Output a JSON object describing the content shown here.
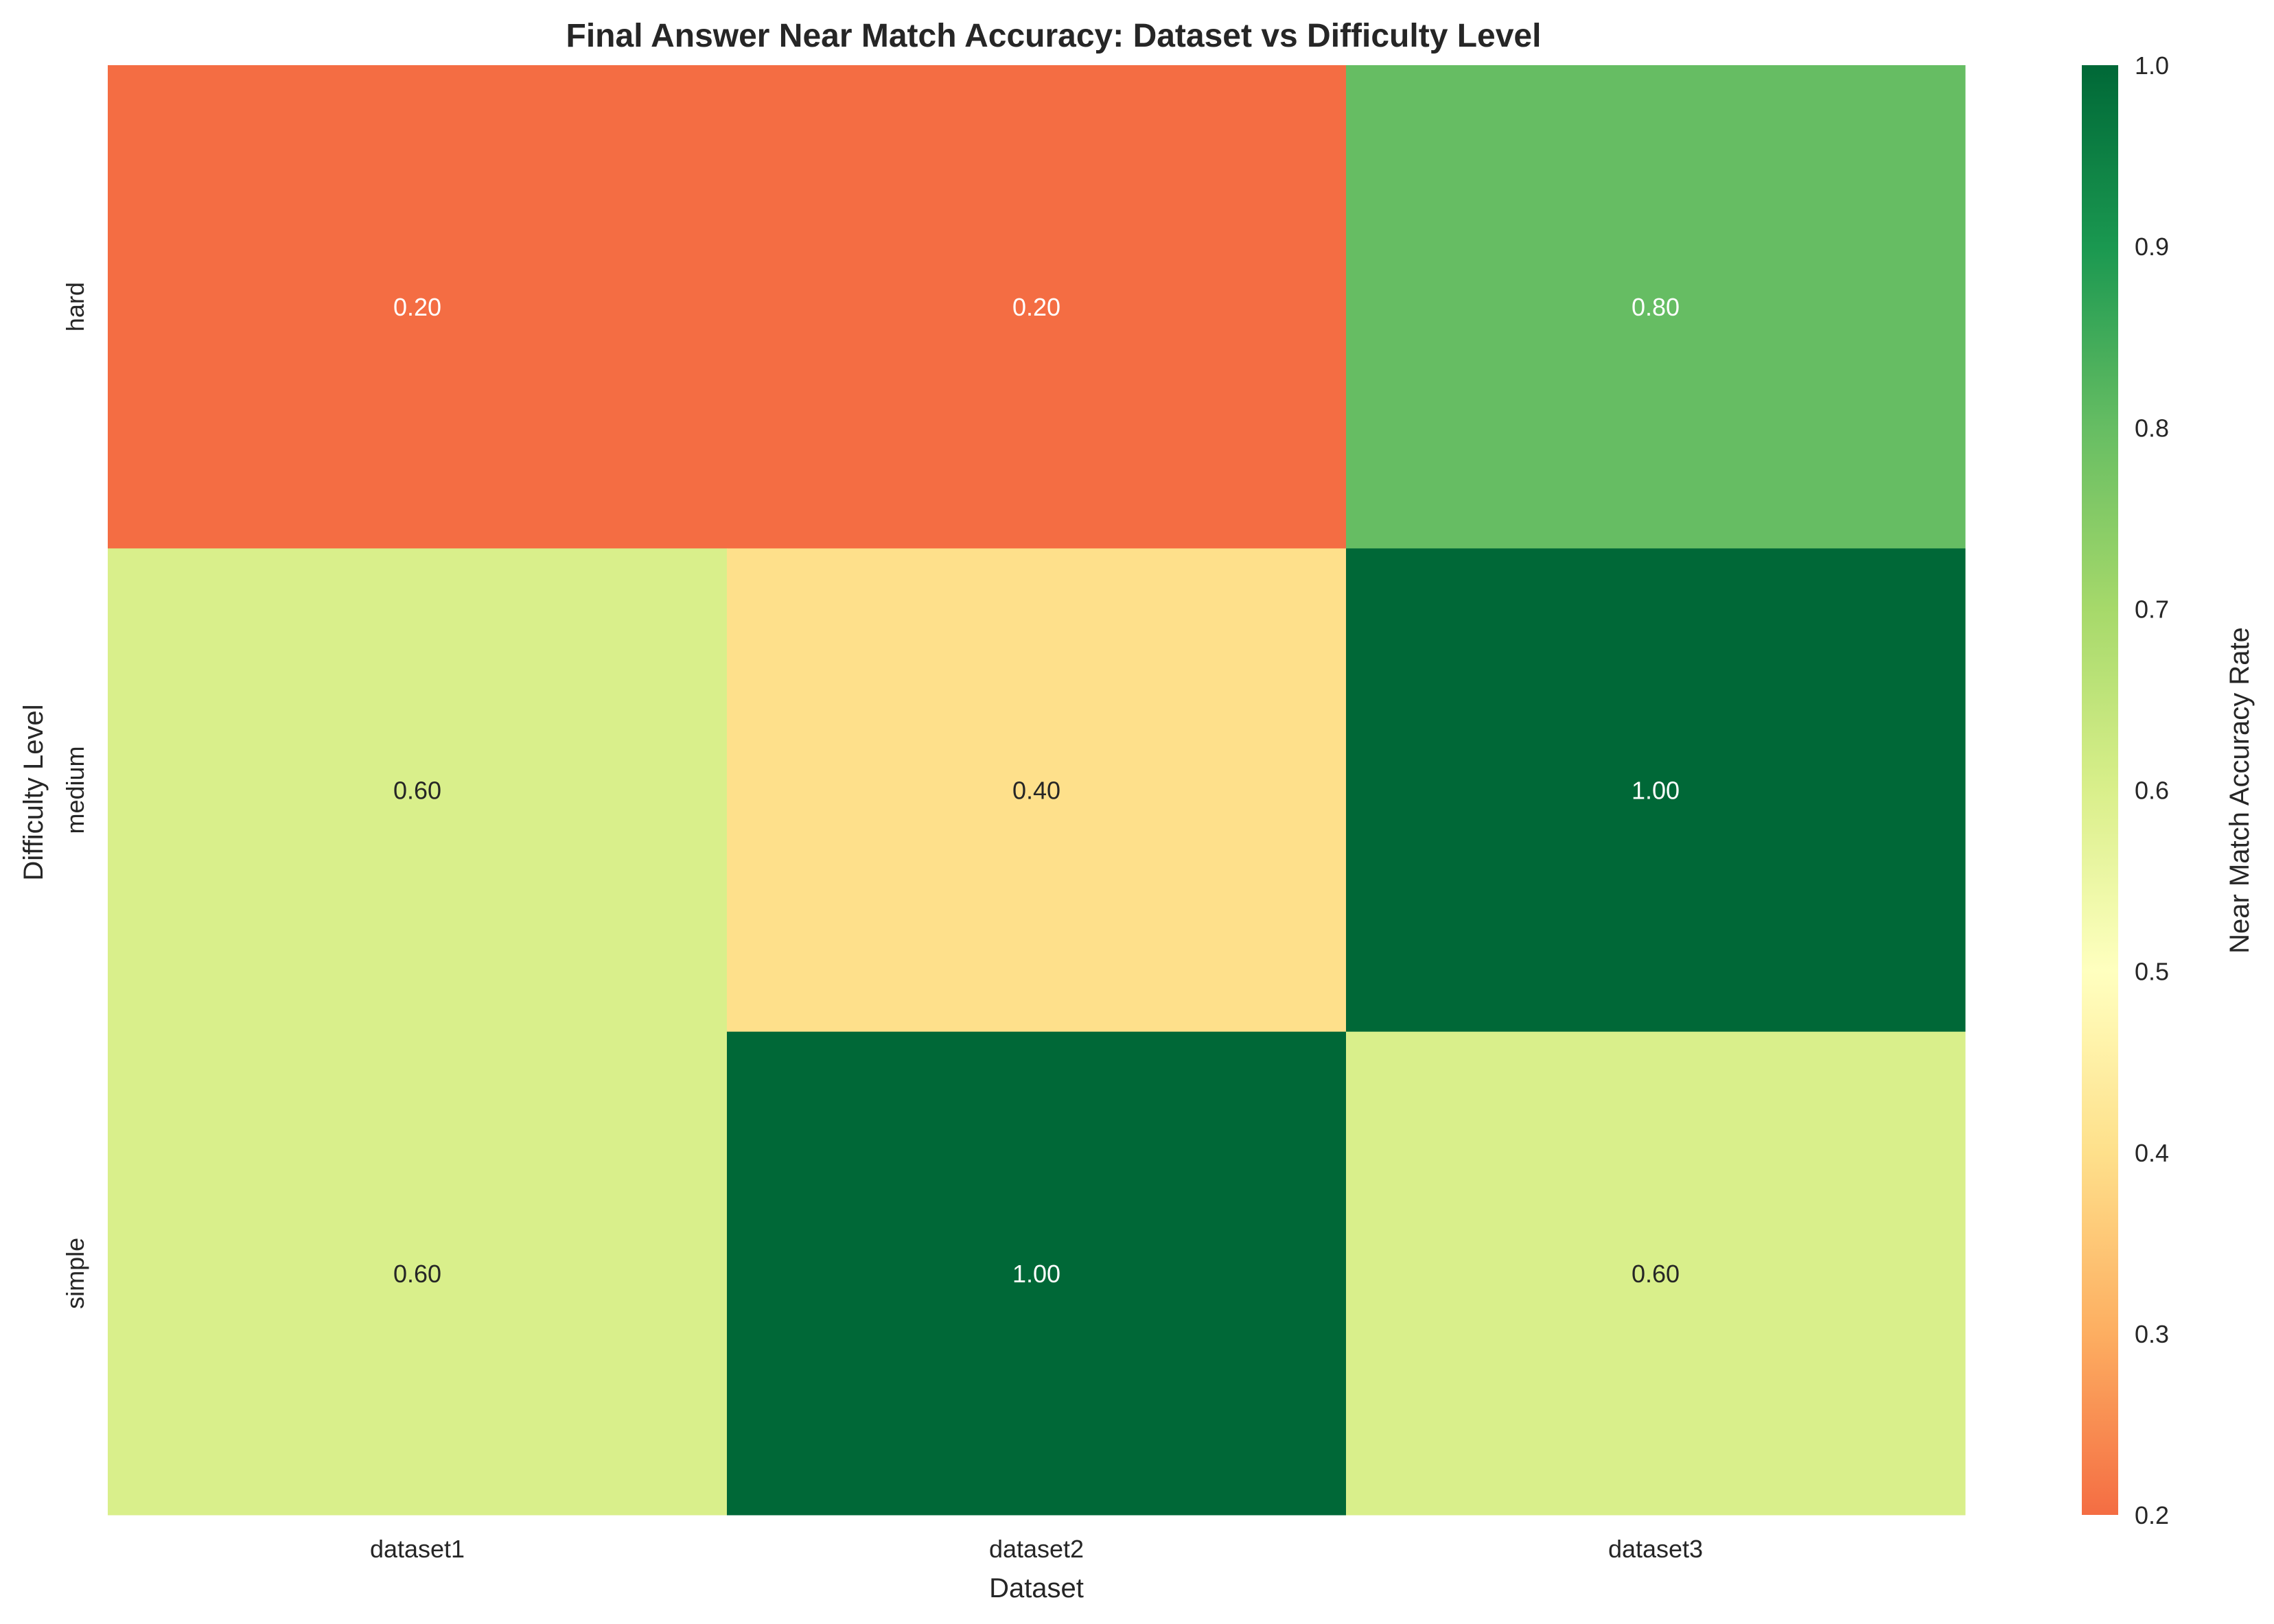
{
  "chart_data": {
    "type": "heatmap",
    "title": "Final Answer Near Match Accuracy: Dataset vs Difficulty Level",
    "xlabel": "Dataset",
    "ylabel": "Difficulty Level",
    "x_categories": [
      "dataset1",
      "dataset2",
      "dataset3"
    ],
    "y_categories": [
      "hard",
      "medium",
      "simple"
    ],
    "values": [
      [
        0.2,
        0.2,
        0.8
      ],
      [
        0.6,
        0.4,
        1.0
      ],
      [
        0.6,
        1.0,
        0.6
      ]
    ],
    "value_labels": [
      [
        "0.20",
        "0.20",
        "0.80"
      ],
      [
        "0.60",
        "0.40",
        "1.00"
      ],
      [
        "0.60",
        "1.00",
        "0.60"
      ]
    ],
    "colorbar": {
      "label": "Near Match Accuracy Rate",
      "range": [
        0.2,
        1.0
      ],
      "ticks": [
        "0.2",
        "0.3",
        "0.4",
        "0.5",
        "0.6",
        "0.7",
        "0.8",
        "0.9",
        "1.0"
      ],
      "colormap": "RdYlGn"
    },
    "colors": {
      "annotation_light": "#ffffff",
      "annotation_dark": "#262626",
      "text": "#262626"
    }
  }
}
